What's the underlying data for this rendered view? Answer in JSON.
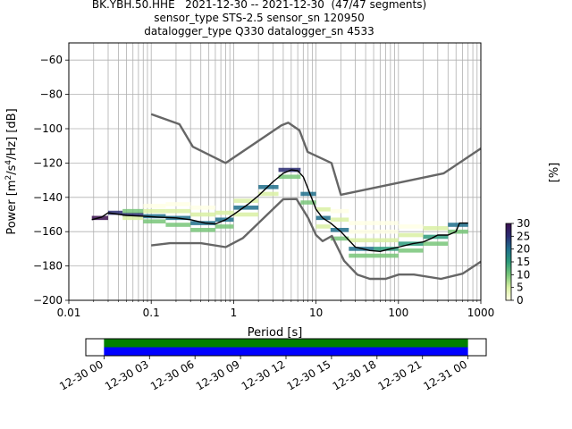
{
  "title_lines": [
    "BK.YBH.50.HHE   2021-12-30 -- 2021-12-30  (47/47 segments)",
    "sensor_type STS-2.5 sensor_sn 120950",
    "datalogger_type Q330 datalogger_sn 4533"
  ],
  "chart_data": [
    {
      "type": "heatmap",
      "xlabel": "Period [s]",
      "ylabel_parts": [
        "Power [m",
        "2",
        "/s",
        "4",
        "/Hz] [dB]"
      ],
      "xscale": "log",
      "xlim": [
        0.01,
        1000
      ],
      "ylim": [
        -200,
        -50
      ],
      "x_ticks": [
        0.01,
        0.1,
        1,
        10,
        100,
        1000
      ],
      "x_tick_labels": [
        "0.01",
        "0.1",
        "1",
        "10",
        "100",
        "1000"
      ],
      "y_ticks": [
        -200,
        -180,
        -160,
        -140,
        -120,
        -100,
        -80,
        -60
      ],
      "y_tick_labels": [
        "−200",
        "−180",
        "−160",
        "−140",
        "−120",
        "−100",
        "−80",
        "−60"
      ],
      "grid": true,
      "colorbar": {
        "label": "[%]",
        "min": 0,
        "max": 30,
        "ticks": [
          0,
          5,
          10,
          15,
          20,
          25,
          30
        ],
        "tick_labels": [
          "0",
          "5",
          "10",
          "15",
          "20",
          "25",
          "30"
        ],
        "colors": [
          "#ffffe5",
          "#d9f0a3",
          "#78c679",
          "#2c9a7a",
          "#1f6f8b",
          "#2b2d73",
          "#3b0f4f"
        ]
      },
      "noise_model_high": [
        [
          0.1,
          -91.5
        ],
        [
          0.22,
          -97.4
        ],
        [
          0.32,
          -110.5
        ],
        [
          0.8,
          -120
        ],
        [
          3.8,
          -98
        ],
        [
          4.6,
          -96.5
        ],
        [
          6.3,
          -101
        ],
        [
          7.9,
          -113.5
        ],
        [
          15.4,
          -120
        ],
        [
          20,
          -138.5
        ],
        [
          354.8,
          -126
        ],
        [
          1000,
          -111.5
        ]
      ],
      "noise_model_low": [
        [
          0.1,
          -168
        ],
        [
          0.17,
          -166.7
        ],
        [
          0.4,
          -166.7
        ],
        [
          0.8,
          -169
        ],
        [
          1.3,
          -163.7
        ],
        [
          4,
          -141.1
        ],
        [
          5.8,
          -141
        ],
        [
          8,
          -152
        ],
        [
          10,
          -162
        ],
        [
          12,
          -165.5
        ],
        [
          15.6,
          -162.5
        ],
        [
          21.9,
          -177
        ],
        [
          31.6,
          -185
        ],
        [
          45,
          -187.5
        ],
        [
          70,
          -187.5
        ],
        [
          101,
          -185
        ],
        [
          154,
          -185
        ],
        [
          328,
          -187.5
        ],
        [
          600,
          -184.5
        ],
        [
          1000,
          -177.5
        ]
      ],
      "mode_curve": [
        [
          0.019,
          -153
        ],
        [
          0.025,
          -151.5
        ],
        [
          0.03,
          -149
        ],
        [
          0.035,
          -149.5
        ],
        [
          0.05,
          -150.5
        ],
        [
          0.08,
          -151
        ],
        [
          0.12,
          -151.5
        ],
        [
          0.2,
          -152
        ],
        [
          0.3,
          -153
        ],
        [
          0.45,
          -155
        ],
        [
          0.6,
          -155.5
        ],
        [
          0.8,
          -153
        ],
        [
          1,
          -150
        ],
        [
          1.5,
          -144
        ],
        [
          2,
          -139
        ],
        [
          3,
          -131
        ],
        [
          4,
          -126
        ],
        [
          5,
          -124
        ],
        [
          6,
          -124.5
        ],
        [
          7,
          -128
        ],
        [
          8,
          -135
        ],
        [
          10,
          -147
        ],
        [
          12,
          -152
        ],
        [
          15,
          -155
        ],
        [
          20,
          -160
        ],
        [
          30,
          -169
        ],
        [
          45,
          -171
        ],
        [
          60,
          -171.5
        ],
        [
          80,
          -170
        ],
        [
          100,
          -169
        ],
        [
          150,
          -167
        ],
        [
          200,
          -166
        ],
        [
          250,
          -164
        ],
        [
          300,
          -162
        ],
        [
          400,
          -162
        ],
        [
          500,
          -160
        ],
        [
          550,
          -155
        ],
        [
          700,
          -155
        ]
      ],
      "density_cells": [
        {
          "x0": 0.019,
          "x1": 0.03,
          "y": -152,
          "p": 30
        },
        {
          "x0": 0.03,
          "x1": 0.045,
          "y": -149,
          "p": 28
        },
        {
          "x0": 0.045,
          "x1": 0.08,
          "y": -150,
          "p": 26
        },
        {
          "x0": 0.045,
          "x1": 0.08,
          "y": -148,
          "p": 10
        },
        {
          "x0": 0.045,
          "x1": 0.08,
          "y": -152,
          "p": 8
        },
        {
          "x0": 0.08,
          "x1": 0.15,
          "y": -151,
          "p": 24
        },
        {
          "x0": 0.08,
          "x1": 0.15,
          "y": -148,
          "p": 8
        },
        {
          "x0": 0.08,
          "x1": 0.15,
          "y": -154,
          "p": 12
        },
        {
          "x0": 0.08,
          "x1": 0.15,
          "y": -145,
          "p": 3
        },
        {
          "x0": 0.15,
          "x1": 0.3,
          "y": -152,
          "p": 20
        },
        {
          "x0": 0.15,
          "x1": 0.3,
          "y": -148,
          "p": 7
        },
        {
          "x0": 0.15,
          "x1": 0.3,
          "y": -156,
          "p": 12
        },
        {
          "x0": 0.15,
          "x1": 0.3,
          "y": -144,
          "p": 3
        },
        {
          "x0": 0.3,
          "x1": 0.6,
          "y": -155,
          "p": 20
        },
        {
          "x0": 0.3,
          "x1": 0.6,
          "y": -159,
          "p": 14
        },
        {
          "x0": 0.3,
          "x1": 0.6,
          "y": -150,
          "p": 7
        },
        {
          "x0": 0.3,
          "x1": 0.6,
          "y": -146,
          "p": 3
        },
        {
          "x0": 0.6,
          "x1": 1.0,
          "y": -153,
          "p": 22
        },
        {
          "x0": 0.6,
          "x1": 1.0,
          "y": -157,
          "p": 10
        },
        {
          "x0": 0.6,
          "x1": 1.0,
          "y": -149,
          "p": 6
        },
        {
          "x0": 1.0,
          "x1": 2.0,
          "y": -146,
          "p": 24
        },
        {
          "x0": 1.0,
          "x1": 2.0,
          "y": -142,
          "p": 8
        },
        {
          "x0": 1.0,
          "x1": 2.0,
          "y": -150,
          "p": 6
        },
        {
          "x0": 2.0,
          "x1": 3.5,
          "y": -134,
          "p": 24
        },
        {
          "x0": 2.0,
          "x1": 3.5,
          "y": -138,
          "p": 8
        },
        {
          "x0": 3.5,
          "x1": 6.5,
          "y": -124,
          "p": 28
        },
        {
          "x0": 3.5,
          "x1": 6.5,
          "y": -128,
          "p": 10
        },
        {
          "x0": 6.5,
          "x1": 10,
          "y": -138,
          "p": 24
        },
        {
          "x0": 6.5,
          "x1": 10,
          "y": -143,
          "p": 10
        },
        {
          "x0": 10,
          "x1": 15,
          "y": -152,
          "p": 22
        },
        {
          "x0": 10,
          "x1": 15,
          "y": -147,
          "p": 8
        },
        {
          "x0": 10,
          "x1": 15,
          "y": -157,
          "p": 8
        },
        {
          "x0": 15,
          "x1": 25,
          "y": -159,
          "p": 20
        },
        {
          "x0": 15,
          "x1": 25,
          "y": -153,
          "p": 6
        },
        {
          "x0": 15,
          "x1": 25,
          "y": -164,
          "p": 10
        },
        {
          "x0": 15,
          "x1": 25,
          "y": -148,
          "p": 3
        },
        {
          "x0": 25,
          "x1": 50,
          "y": -170,
          "p": 20
        },
        {
          "x0": 25,
          "x1": 50,
          "y": -174,
          "p": 14
        },
        {
          "x0": 25,
          "x1": 50,
          "y": -165,
          "p": 8
        },
        {
          "x0": 25,
          "x1": 50,
          "y": -160,
          "p": 4
        },
        {
          "x0": 25,
          "x1": 50,
          "y": -155,
          "p": 2
        },
        {
          "x0": 50,
          "x1": 100,
          "y": -170,
          "p": 18
        },
        {
          "x0": 50,
          "x1": 100,
          "y": -174,
          "p": 12
        },
        {
          "x0": 50,
          "x1": 100,
          "y": -165,
          "p": 8
        },
        {
          "x0": 50,
          "x1": 100,
          "y": -160,
          "p": 4
        },
        {
          "x0": 50,
          "x1": 100,
          "y": -155,
          "p": 2
        },
        {
          "x0": 100,
          "x1": 200,
          "y": -167,
          "p": 18
        },
        {
          "x0": 100,
          "x1": 200,
          "y": -171,
          "p": 10
        },
        {
          "x0": 100,
          "x1": 200,
          "y": -162,
          "p": 6
        },
        {
          "x0": 100,
          "x1": 200,
          "y": -157,
          "p": 3
        },
        {
          "x0": 200,
          "x1": 400,
          "y": -163,
          "p": 18
        },
        {
          "x0": 200,
          "x1": 400,
          "y": -167,
          "p": 10
        },
        {
          "x0": 200,
          "x1": 400,
          "y": -158,
          "p": 6
        },
        {
          "x0": 400,
          "x1": 700,
          "y": -156,
          "p": 20
        },
        {
          "x0": 400,
          "x1": 700,
          "y": -160,
          "p": 10
        }
      ]
    },
    {
      "type": "timeline",
      "x_tick_labels": [
        "12-30 00",
        "12-30 03",
        "12-30 06",
        "12-30 09",
        "12-30 12",
        "12-30 15",
        "12-30 18",
        "12-30 21",
        "12-31 00"
      ],
      "x_ticks_hours": [
        0,
        3,
        6,
        9,
        12,
        15,
        18,
        21,
        24
      ],
      "xlim_hours": [
        -1.2,
        25.2
      ],
      "bars": [
        {
          "start_hour": 0,
          "end_hour": 24,
          "color": "#008000"
        },
        {
          "start_hour": 0,
          "end_hour": 24,
          "color": "#0000ff"
        }
      ]
    }
  ]
}
